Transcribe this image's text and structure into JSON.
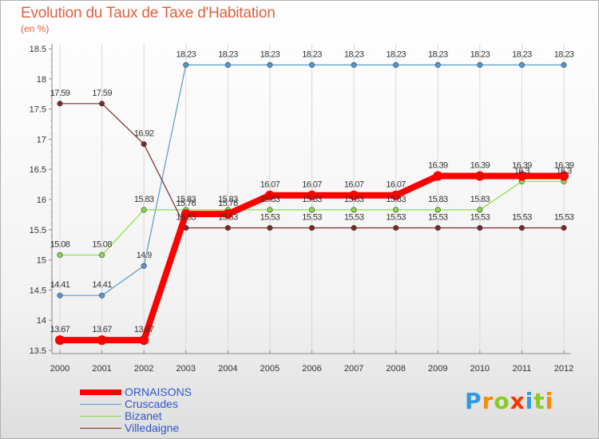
{
  "title": "Evolution du Taux de Taxe d'Habitation",
  "subtitle": "(en %)",
  "logo_text": "Proxiti",
  "chart_data": {
    "type": "line",
    "title": "Evolution du Taux de Taxe d'Habitation",
    "ylabel": "(en %)",
    "xlabel": "",
    "x": [
      "2000",
      "2001",
      "2002",
      "2003",
      "2004",
      "2005",
      "2006",
      "2007",
      "2008",
      "2009",
      "2010",
      "2011",
      "2012"
    ],
    "ylim": [
      13.5,
      18.5
    ],
    "yticks": [
      "13.5",
      "14",
      "14.5",
      "15",
      "15.5",
      "16",
      "16.5",
      "17",
      "17.5",
      "18",
      "18.5"
    ],
    "grid": "vertical",
    "legend_position": "bottom-left",
    "series": [
      {
        "name": "ORNAISONS",
        "color": "#ff0000",
        "values": [
          13.67,
          13.67,
          13.67,
          15.76,
          15.76,
          16.07,
          16.07,
          16.07,
          16.07,
          16.39,
          16.39,
          16.39,
          16.39
        ],
        "labels": [
          "13.67",
          "13.67",
          "13.67",
          "15.76",
          "15.76",
          "16.07",
          "16.07",
          "16.07",
          "16.07",
          "16.39",
          "16.39",
          "16.39",
          "16.39"
        ]
      },
      {
        "name": "Cruscades",
        "color": "#5599cc",
        "values": [
          14.41,
          14.41,
          14.9,
          18.23,
          18.23,
          18.23,
          18.23,
          18.23,
          18.23,
          18.23,
          18.23,
          18.23,
          18.23
        ],
        "labels": [
          "14.41",
          "14.41",
          "14.9",
          "18.23",
          "18.23",
          "18.23",
          "18.23",
          "18.23",
          "18.23",
          "18.23",
          "18.23",
          "18.23",
          "18.23"
        ]
      },
      {
        "name": "Bizanet",
        "color": "#88dd44",
        "values": [
          15.08,
          15.08,
          15.83,
          15.83,
          15.83,
          15.83,
          15.83,
          15.83,
          15.83,
          15.83,
          15.83,
          16.3,
          16.3
        ],
        "labels": [
          "15.08",
          "15.08",
          "15.83",
          "15.83",
          "15.83",
          "15.83",
          "15.83",
          "15.83",
          "15.83",
          "15.83",
          "15.83",
          "16.3",
          "16.3"
        ]
      },
      {
        "name": "Villedaigne",
        "color": "#7a2a2a",
        "values": [
          17.59,
          17.59,
          16.92,
          15.53,
          15.53,
          15.53,
          15.53,
          15.53,
          15.53,
          15.53,
          15.53,
          15.53,
          15.53
        ],
        "labels": [
          "17.59",
          "17.59",
          "16.92",
          "15.53",
          "15.53",
          "15.53",
          "15.53",
          "15.53",
          "15.53",
          "15.53",
          "15.53",
          "15.53",
          "15.53"
        ]
      }
    ]
  }
}
